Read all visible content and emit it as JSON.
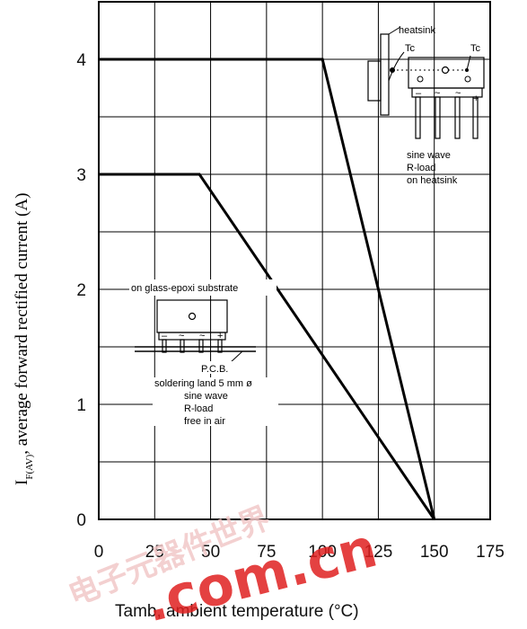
{
  "chart_data": {
    "type": "line",
    "xlabel": "Tamb, ambient temperature (°C)",
    "ylabel_symbol": "I",
    "ylabel_subscript": "F(AV)",
    "ylabel_text": ", average forward rectified current (A)",
    "x_ticks": [
      "0",
      "25",
      "50",
      "75",
      "100",
      "125",
      "150",
      "175"
    ],
    "y_ticks": [
      "0",
      "1",
      "2",
      "3",
      "4"
    ],
    "xlim": [
      0,
      175
    ],
    "ylim": [
      0,
      4.5
    ],
    "grid": true,
    "series": [
      {
        "x": [
          0,
          100,
          150
        ],
        "y": [
          4,
          4,
          0
        ],
        "condition": "on heatsink"
      },
      {
        "x": [
          0,
          45,
          150
        ],
        "y": [
          3,
          3,
          0
        ],
        "condition": "on glass-epoxi substrate"
      }
    ],
    "annotations": {
      "heatsink_label": "heatsink",
      "tc_left": "Tc",
      "tc_right": "Tc",
      "heatsink_pins": [
        "–",
        "~",
        "~",
        "+"
      ],
      "heatsink_notes": [
        "sine wave",
        "R-load",
        "on heatsink"
      ],
      "substrate_label": "on glass-epoxi substrate",
      "substrate_pins": [
        "–",
        "~",
        "~",
        "+"
      ],
      "pcb_label": "P.C.B.",
      "substrate_notes": [
        "soldering land 5 mm ø",
        "sine wave",
        "R-load",
        "free in air"
      ]
    }
  },
  "watermark": {
    "text": ".com.cn",
    "cjk": "电子元器件世界"
  }
}
